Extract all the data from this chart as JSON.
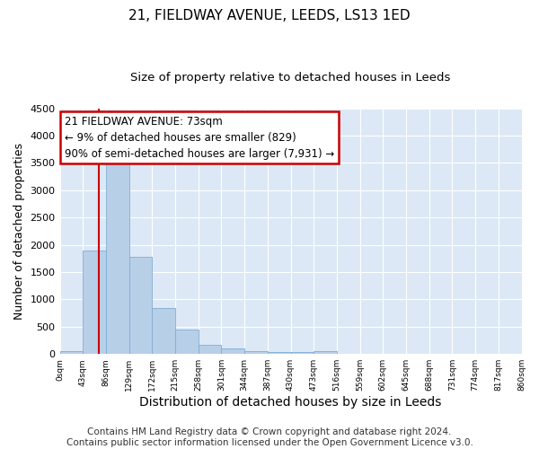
{
  "title": "21, FIELDWAY AVENUE, LEEDS, LS13 1ED",
  "subtitle": "Size of property relative to detached houses in Leeds",
  "xlabel": "Distribution of detached houses by size in Leeds",
  "ylabel": "Number of detached properties",
  "bin_edges": [
    0,
    43,
    86,
    129,
    172,
    215,
    258,
    301,
    344,
    387,
    430,
    473,
    516,
    559,
    602,
    645,
    688,
    731,
    774,
    817,
    860
  ],
  "bar_heights": [
    50,
    1900,
    3500,
    1780,
    850,
    450,
    175,
    100,
    55,
    40,
    30,
    55,
    5,
    0,
    0,
    0,
    0,
    0,
    0,
    0
  ],
  "bar_color": "#b8cfe8",
  "bar_edgecolor": "#7fadd4",
  "vline_x": 73,
  "vline_color": "#cc0000",
  "ylim": [
    0,
    4500
  ],
  "annotation_text": "21 FIELDWAY AVENUE: 73sqm\n← 9% of detached houses are smaller (829)\n90% of semi-detached houses are larger (7,931) →",
  "annotation_box_edgecolor": "#cc0000",
  "annotation_box_facecolor": "#ffffff",
  "annotation_fontsize": 8.5,
  "tick_labels": [
    "0sqm",
    "43sqm",
    "86sqm",
    "129sqm",
    "172sqm",
    "215sqm",
    "258sqm",
    "301sqm",
    "344sqm",
    "387sqm",
    "430sqm",
    "473sqm",
    "516sqm",
    "559sqm",
    "602sqm",
    "645sqm",
    "688sqm",
    "731sqm",
    "774sqm",
    "817sqm",
    "860sqm"
  ],
  "footer_line1": "Contains HM Land Registry data © Crown copyright and database right 2024.",
  "footer_line2": "Contains public sector information licensed under the Open Government Licence v3.0.",
  "background_color": "#dce8f5",
  "grid_color": "#ffffff",
  "title_fontsize": 11,
  "subtitle_fontsize": 9.5,
  "ylabel_fontsize": 9,
  "xlabel_fontsize": 10,
  "footer_fontsize": 7.5
}
